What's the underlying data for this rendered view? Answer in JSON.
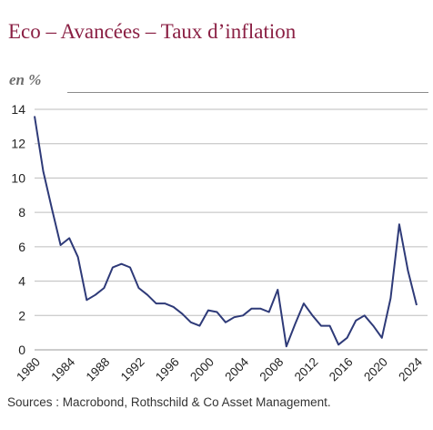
{
  "header": {
    "title": "Eco – Avancées – Taux d’inflation",
    "unit": "en %"
  },
  "footer": {
    "source": "Sources : Macrobond, Rothschild & Co Asset Management."
  },
  "chart_data": {
    "type": "line",
    "ylim": [
      0,
      14
    ],
    "y_ticks": [
      0,
      2,
      4,
      6,
      8,
      10,
      12,
      14
    ],
    "xlim": [
      1980,
      2024
    ],
    "x_ticks": [
      1980,
      1984,
      1988,
      1992,
      1996,
      2000,
      2004,
      2008,
      2012,
      2016,
      2020,
      2024
    ],
    "grid": true,
    "line_color": "#2e3a78",
    "series": [
      {
        "x": [
          1980,
          1981,
          1982,
          1983,
          1984,
          1985,
          1986,
          1987,
          1988,
          1989,
          1990,
          1991,
          1992,
          1993,
          1994,
          1995,
          1996,
          1997,
          1998,
          1999,
          2000,
          2001,
          2002,
          2003,
          2004,
          2005,
          2006,
          2007,
          2008,
          2009,
          2010,
          2011,
          2012,
          2013,
          2014,
          2015,
          2016,
          2017,
          2018,
          2019,
          2020,
          2021,
          2022,
          2023,
          2024
        ],
        "values": [
          13.6,
          10.4,
          8.2,
          6.1,
          6.5,
          5.4,
          2.9,
          3.2,
          3.6,
          4.8,
          5.0,
          4.8,
          3.6,
          3.2,
          2.7,
          2.7,
          2.5,
          2.1,
          1.6,
          1.4,
          2.3,
          2.2,
          1.6,
          1.9,
          2.0,
          2.4,
          2.4,
          2.2,
          3.5,
          0.2,
          1.5,
          2.7,
          2.0,
          1.4,
          1.4,
          0.3,
          0.7,
          1.7,
          2.0,
          1.4,
          0.7,
          3.0,
          7.3,
          4.6,
          2.6
        ]
      }
    ]
  }
}
